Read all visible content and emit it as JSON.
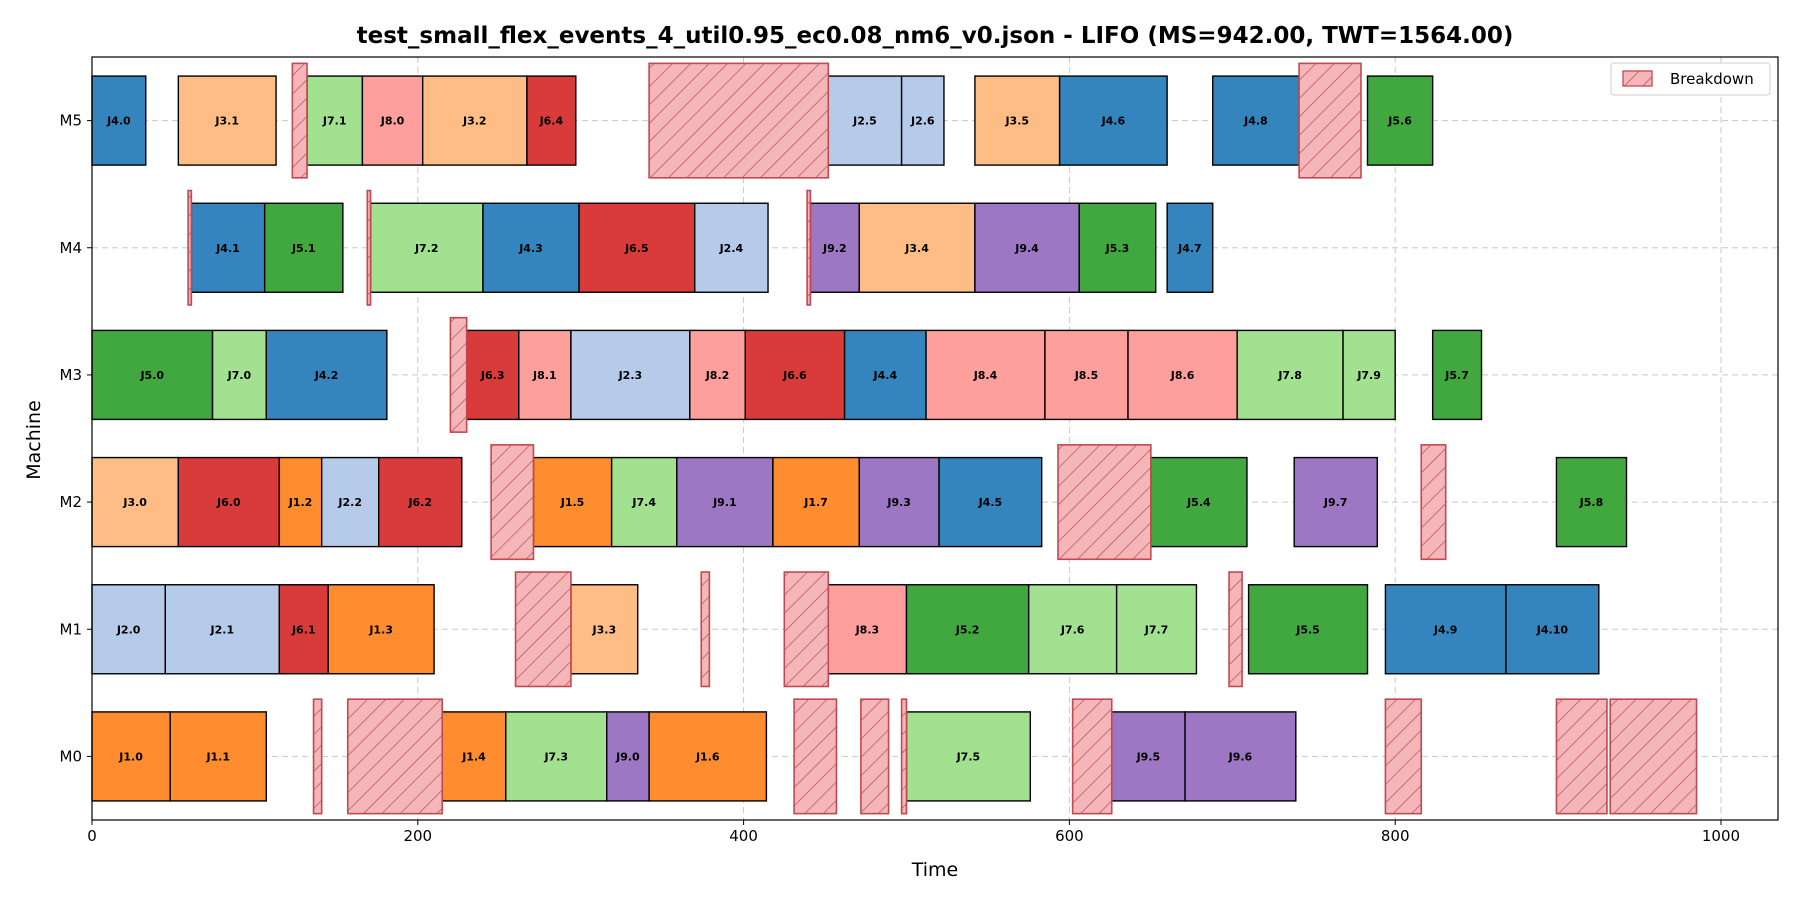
{
  "chart_data": {
    "type": "gantt",
    "title": "test_small_flex_events_4_util0.95_ec0.08_nm6_v0.json - LIFO (MS=942.00, TWT=1564.00)",
    "xlabel": "Time",
    "ylabel": "Machine",
    "xlim": [
      0,
      1035
    ],
    "xticks": [
      0,
      200,
      400,
      600,
      800,
      1000
    ],
    "machines": [
      "M0",
      "M1",
      "M2",
      "M3",
      "M4",
      "M5"
    ],
    "grid": true,
    "legend": {
      "position": "top-right",
      "label": "Breakdown"
    },
    "job_colors": {
      "J1": "#ff8c2e",
      "J2": "#b6cbe9",
      "J3": "#ffbd86",
      "J4": "#3484bd",
      "J5": "#41a83f",
      "J6": "#d93b3b",
      "J7": "#a1e190",
      "J8": "#ff9f9c",
      "J9": "#9d77c4"
    },
    "breakdown_color": "#f4b6b8",
    "breakdown_edge": "#c04a52",
    "operations": [
      {
        "machine": "M0",
        "label": "J1.0",
        "job": "J1",
        "start": 0,
        "end": 48
      },
      {
        "machine": "M0",
        "label": "J1.1",
        "job": "J1",
        "start": 48,
        "end": 107
      },
      {
        "machine": "M0",
        "label": "J1.4",
        "job": "J1",
        "start": 215,
        "end": 254
      },
      {
        "machine": "M0",
        "label": "J7.3",
        "job": "J7",
        "start": 254,
        "end": 316
      },
      {
        "machine": "M0",
        "label": "J9.0",
        "job": "J9",
        "start": 316,
        "end": 342
      },
      {
        "machine": "M0",
        "label": "J1.6",
        "job": "J1",
        "start": 342,
        "end": 414
      },
      {
        "machine": "M0",
        "label": "J7.5",
        "job": "J7",
        "start": 500,
        "end": 576
      },
      {
        "machine": "M0",
        "label": "J9.5",
        "job": "J9",
        "start": 626,
        "end": 671
      },
      {
        "machine": "M0",
        "label": "J9.6",
        "job": "J9",
        "start": 671,
        "end": 739
      },
      {
        "machine": "M1",
        "label": "J2.0",
        "job": "J2",
        "start": 0,
        "end": 45
      },
      {
        "machine": "M1",
        "label": "J2.1",
        "job": "J2",
        "start": 45,
        "end": 115
      },
      {
        "machine": "M1",
        "label": "J6.1",
        "job": "J6",
        "start": 115,
        "end": 145
      },
      {
        "machine": "M1",
        "label": "J1.3",
        "job": "J1",
        "start": 145,
        "end": 210
      },
      {
        "machine": "M1",
        "label": "J3.3",
        "job": "J3",
        "start": 294,
        "end": 335
      },
      {
        "machine": "M1",
        "label": "J8.3",
        "job": "J8",
        "start": 452,
        "end": 500
      },
      {
        "machine": "M1",
        "label": "J5.2",
        "job": "J5",
        "start": 500,
        "end": 575
      },
      {
        "machine": "M1",
        "label": "J7.6",
        "job": "J7",
        "start": 575,
        "end": 629
      },
      {
        "machine": "M1",
        "label": "J7.7",
        "job": "J7",
        "start": 629,
        "end": 678
      },
      {
        "machine": "M1",
        "label": "J5.5",
        "job": "J5",
        "start": 710,
        "end": 783
      },
      {
        "machine": "M1",
        "label": "J4.9",
        "job": "J4",
        "start": 794,
        "end": 868
      },
      {
        "machine": "M1",
        "label": "J4.10",
        "job": "J4",
        "start": 868,
        "end": 925
      },
      {
        "machine": "M2",
        "label": "J3.0",
        "job": "J3",
        "start": 0,
        "end": 53
      },
      {
        "machine": "M2",
        "label": "J6.0",
        "job": "J6",
        "start": 53,
        "end": 115
      },
      {
        "machine": "M2",
        "label": "J1.2",
        "job": "J1",
        "start": 115,
        "end": 141
      },
      {
        "machine": "M2",
        "label": "J2.2",
        "job": "J2",
        "start": 141,
        "end": 176
      },
      {
        "machine": "M2",
        "label": "J6.2",
        "job": "J6",
        "start": 176,
        "end": 227
      },
      {
        "machine": "M2",
        "label": "J1.5",
        "job": "J1",
        "start": 271,
        "end": 319
      },
      {
        "machine": "M2",
        "label": "J7.4",
        "job": "J7",
        "start": 319,
        "end": 359
      },
      {
        "machine": "M2",
        "label": "J9.1",
        "job": "J9",
        "start": 359,
        "end": 418
      },
      {
        "machine": "M2",
        "label": "J1.7",
        "job": "J1",
        "start": 418,
        "end": 471
      },
      {
        "machine": "M2",
        "label": "J9.3",
        "job": "J9",
        "start": 471,
        "end": 520
      },
      {
        "machine": "M2",
        "label": "J4.5",
        "job": "J4",
        "start": 520,
        "end": 583
      },
      {
        "machine": "M2",
        "label": "J5.4",
        "job": "J5",
        "start": 650,
        "end": 709
      },
      {
        "machine": "M2",
        "label": "J9.7",
        "job": "J9",
        "start": 738,
        "end": 789
      },
      {
        "machine": "M2",
        "label": "J5.8",
        "job": "J5",
        "start": 899,
        "end": 942
      },
      {
        "machine": "M3",
        "label": "J5.0",
        "job": "J5",
        "start": 0,
        "end": 74
      },
      {
        "machine": "M3",
        "label": "J7.0",
        "job": "J7",
        "start": 74,
        "end": 107
      },
      {
        "machine": "M3",
        "label": "J4.2",
        "job": "J4",
        "start": 107,
        "end": 181
      },
      {
        "machine": "M3",
        "label": "J6.3",
        "job": "J6",
        "start": 230,
        "end": 262
      },
      {
        "machine": "M3",
        "label": "J8.1",
        "job": "J8",
        "start": 262,
        "end": 294
      },
      {
        "machine": "M3",
        "label": "J2.3",
        "job": "J2",
        "start": 294,
        "end": 367
      },
      {
        "machine": "M3",
        "label": "J8.2",
        "job": "J8",
        "start": 367,
        "end": 401
      },
      {
        "machine": "M3",
        "label": "J6.6",
        "job": "J6",
        "start": 401,
        "end": 462
      },
      {
        "machine": "M3",
        "label": "J4.4",
        "job": "J4",
        "start": 462,
        "end": 512
      },
      {
        "machine": "M3",
        "label": "J8.4",
        "job": "J8",
        "start": 512,
        "end": 585
      },
      {
        "machine": "M3",
        "label": "J8.5",
        "job": "J8",
        "start": 585,
        "end": 636
      },
      {
        "machine": "M3",
        "label": "J8.6",
        "job": "J8",
        "start": 636,
        "end": 703
      },
      {
        "machine": "M3",
        "label": "J7.8",
        "job": "J7",
        "start": 703,
        "end": 768
      },
      {
        "machine": "M3",
        "label": "J7.9",
        "job": "J7",
        "start": 768,
        "end": 800
      },
      {
        "machine": "M3",
        "label": "J5.7",
        "job": "J5",
        "start": 823,
        "end": 853
      },
      {
        "machine": "M4",
        "label": "J4.1",
        "job": "J4",
        "start": 61,
        "end": 106
      },
      {
        "machine": "M4",
        "label": "J5.1",
        "job": "J5",
        "start": 106,
        "end": 154
      },
      {
        "machine": "M4",
        "label": "J7.2",
        "job": "J7",
        "start": 171,
        "end": 240
      },
      {
        "machine": "M4",
        "label": "J4.3",
        "job": "J4",
        "start": 240,
        "end": 299
      },
      {
        "machine": "M4",
        "label": "J6.5",
        "job": "J6",
        "start": 299,
        "end": 370
      },
      {
        "machine": "M4",
        "label": "J2.4",
        "job": "J2",
        "start": 370,
        "end": 415
      },
      {
        "machine": "M4",
        "label": "J9.2",
        "job": "J9",
        "start": 441,
        "end": 471
      },
      {
        "machine": "M4",
        "label": "J3.4",
        "job": "J3",
        "start": 471,
        "end": 542
      },
      {
        "machine": "M4",
        "label": "J9.4",
        "job": "J9",
        "start": 542,
        "end": 606
      },
      {
        "machine": "M4",
        "label": "J5.3",
        "job": "J5",
        "start": 606,
        "end": 653
      },
      {
        "machine": "M4",
        "label": "J4.7",
        "job": "J4",
        "start": 660,
        "end": 688
      },
      {
        "machine": "M5",
        "label": "J4.0",
        "job": "J4",
        "start": 0,
        "end": 33
      },
      {
        "machine": "M5",
        "label": "J3.1",
        "job": "J3",
        "start": 53,
        "end": 113
      },
      {
        "machine": "M5",
        "label": "J7.1",
        "job": "J7",
        "start": 132,
        "end": 166
      },
      {
        "machine": "M5",
        "label": "J8.0",
        "job": "J8",
        "start": 166,
        "end": 203
      },
      {
        "machine": "M5",
        "label": "J3.2",
        "job": "J3",
        "start": 203,
        "end": 267
      },
      {
        "machine": "M5",
        "label": "J6.4",
        "job": "J6",
        "start": 267,
        "end": 297
      },
      {
        "machine": "M5",
        "label": "J2.5",
        "job": "J2",
        "start": 452,
        "end": 497
      },
      {
        "machine": "M5",
        "label": "J2.6",
        "job": "J2",
        "start": 497,
        "end": 523
      },
      {
        "machine": "M5",
        "label": "J3.5",
        "job": "J3",
        "start": 542,
        "end": 594
      },
      {
        "machine": "M5",
        "label": "J4.6",
        "job": "J4",
        "start": 594,
        "end": 660
      },
      {
        "machine": "M5",
        "label": "J4.8",
        "job": "J4",
        "start": 688,
        "end": 741
      },
      {
        "machine": "M5",
        "label": "J5.6",
        "job": "J5",
        "start": 783,
        "end": 823
      }
    ],
    "breakdowns": [
      {
        "machine": "M0",
        "start": 136,
        "end": 141
      },
      {
        "machine": "M0",
        "start": 157,
        "end": 215
      },
      {
        "machine": "M0",
        "start": 431,
        "end": 457
      },
      {
        "machine": "M0",
        "start": 472,
        "end": 489
      },
      {
        "machine": "M0",
        "start": 497,
        "end": 500
      },
      {
        "machine": "M0",
        "start": 602,
        "end": 626
      },
      {
        "machine": "M0",
        "start": 794,
        "end": 816
      },
      {
        "machine": "M0",
        "start": 899,
        "end": 930
      },
      {
        "machine": "M0",
        "start": 932,
        "end": 985
      },
      {
        "machine": "M1",
        "start": 260,
        "end": 294
      },
      {
        "machine": "M1",
        "start": 374,
        "end": 379
      },
      {
        "machine": "M1",
        "start": 425,
        "end": 452
      },
      {
        "machine": "M1",
        "start": 698,
        "end": 706
      },
      {
        "machine": "M2",
        "start": 245,
        "end": 271
      },
      {
        "machine": "M2",
        "start": 593,
        "end": 650
      },
      {
        "machine": "M2",
        "start": 816,
        "end": 831
      },
      {
        "machine": "M3",
        "start": 220,
        "end": 230
      },
      {
        "machine": "M4",
        "start": 59,
        "end": 61
      },
      {
        "machine": "M4",
        "start": 169,
        "end": 171
      },
      {
        "machine": "M4",
        "start": 439,
        "end": 441
      },
      {
        "machine": "M5",
        "start": 123,
        "end": 132
      },
      {
        "machine": "M5",
        "start": 342,
        "end": 452
      },
      {
        "machine": "M5",
        "start": 741,
        "end": 779
      }
    ]
  }
}
